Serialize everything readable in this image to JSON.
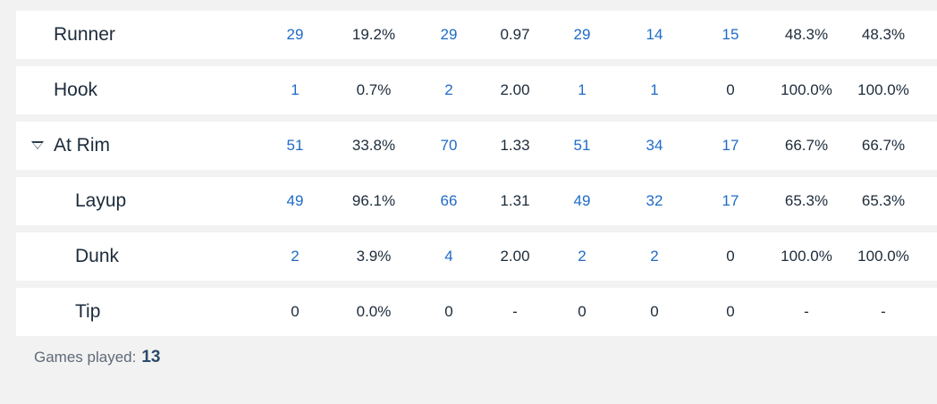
{
  "rows": [
    {
      "name": "Runner",
      "level": 1,
      "expandable": false,
      "cells": [
        "29",
        "19.2%",
        "29",
        "0.97",
        "29",
        "14",
        "15",
        "48.3%",
        "48.3%"
      ]
    },
    {
      "name": "Hook",
      "level": 1,
      "expandable": false,
      "cells": [
        "1",
        "0.7%",
        "2",
        "2.00",
        "1",
        "1",
        "0",
        "100.0%",
        "100.0%"
      ]
    },
    {
      "name": "At Rim",
      "level": 1,
      "expandable": true,
      "cells": [
        "51",
        "33.8%",
        "70",
        "1.33",
        "51",
        "34",
        "17",
        "66.7%",
        "66.7%"
      ]
    },
    {
      "name": "Layup",
      "level": 2,
      "expandable": false,
      "cells": [
        "49",
        "96.1%",
        "66",
        "1.31",
        "49",
        "32",
        "17",
        "65.3%",
        "65.3%"
      ]
    },
    {
      "name": "Dunk",
      "level": 2,
      "expandable": false,
      "cells": [
        "2",
        "3.9%",
        "4",
        "2.00",
        "2",
        "2",
        "0",
        "100.0%",
        "100.0%"
      ]
    },
    {
      "name": "Tip",
      "level": 2,
      "expandable": false,
      "cells": [
        "0",
        "0.0%",
        "0",
        "-",
        "0",
        "0",
        "0",
        "-",
        "-"
      ]
    }
  ],
  "footer": {
    "games_played_label": "Games played:",
    "games_played_value": "13"
  },
  "colors": {
    "link": "#1f6bc7",
    "text": "#1c2b3a",
    "background": "#f2f2f2",
    "row_background": "#ffffff"
  },
  "icons": {
    "expand_toggle": "caret-down-outline-icon"
  }
}
